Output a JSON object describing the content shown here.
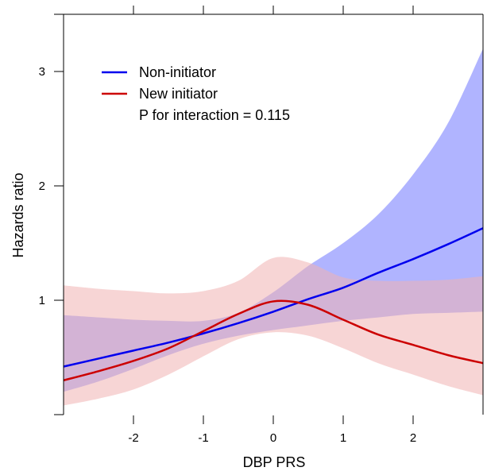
{
  "chart_data": {
    "type": "line",
    "xlabel": "DBP PRS",
    "ylabel": "Hazards ratio",
    "xlim": [
      -3.0,
      3.0
    ],
    "ylim": [
      0.0,
      3.5
    ],
    "x_ticks": [
      -2,
      -1,
      0,
      1,
      2
    ],
    "x_tick_labels": [
      "-2",
      "-1",
      "0",
      "1",
      "2"
    ],
    "y_ticks": [
      1,
      2,
      3
    ],
    "y_tick_labels": [
      "1",
      "2",
      "3"
    ],
    "legend": {
      "placement": "top-left",
      "annotation": "P for interaction = 0.115"
    },
    "x": [
      -3.0,
      -2.5,
      -2.0,
      -1.5,
      -1.0,
      -0.5,
      0.0,
      0.5,
      1.0,
      1.5,
      2.0,
      2.5,
      3.0
    ],
    "series": [
      {
        "name": "Non-initiator",
        "color": "#0000ee",
        "band_color": "#b0b4ff",
        "values": [
          0.42,
          0.49,
          0.56,
          0.63,
          0.71,
          0.8,
          0.9,
          1.01,
          1.11,
          1.24,
          1.36,
          1.49,
          1.63
        ],
        "lower": [
          0.2,
          0.29,
          0.4,
          0.52,
          0.62,
          0.69,
          0.74,
          0.78,
          0.82,
          0.85,
          0.88,
          0.89,
          0.9
        ],
        "upper": [
          0.87,
          0.85,
          0.83,
          0.82,
          0.82,
          0.89,
          1.07,
          1.3,
          1.5,
          1.75,
          2.1,
          2.55,
          3.2
        ]
      },
      {
        "name": "New initiator",
        "color": "#cc0000",
        "band_color": "#f0b2b2",
        "values": [
          0.3,
          0.38,
          0.47,
          0.58,
          0.73,
          0.88,
          0.99,
          0.96,
          0.83,
          0.7,
          0.61,
          0.52,
          0.45
        ],
        "lower": [
          0.08,
          0.14,
          0.22,
          0.35,
          0.51,
          0.66,
          0.72,
          0.69,
          0.58,
          0.45,
          0.35,
          0.25,
          0.17
        ],
        "upper": [
          1.13,
          1.1,
          1.08,
          1.06,
          1.08,
          1.17,
          1.37,
          1.33,
          1.2,
          1.17,
          1.17,
          1.18,
          1.21
        ]
      }
    ]
  }
}
